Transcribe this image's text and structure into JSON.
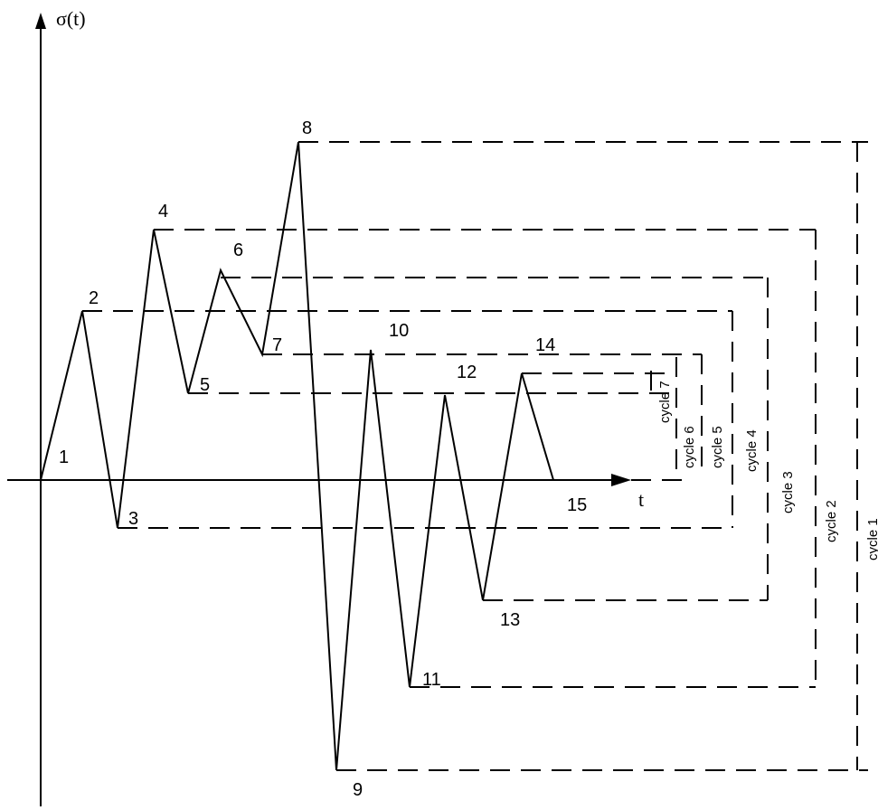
{
  "axes": {
    "y_label": "σ(t)",
    "x_label": "t"
  },
  "points": {
    "p1": "1",
    "p2": "2",
    "p3": "3",
    "p4": "4",
    "p5": "5",
    "p6": "6",
    "p7": "7",
    "p8": "8",
    "p9": "9",
    "p10": "10",
    "p11": "11",
    "p12": "12",
    "p13": "13",
    "p14": "14",
    "p15": "15"
  },
  "cycles": {
    "c1": "cycle 1",
    "c2": "cycle 2",
    "c3": "cycle 3",
    "c4": "cycle 4",
    "c5": "cycle 5",
    "c6": "cycle 6",
    "c7": "cycle 7"
  }
}
